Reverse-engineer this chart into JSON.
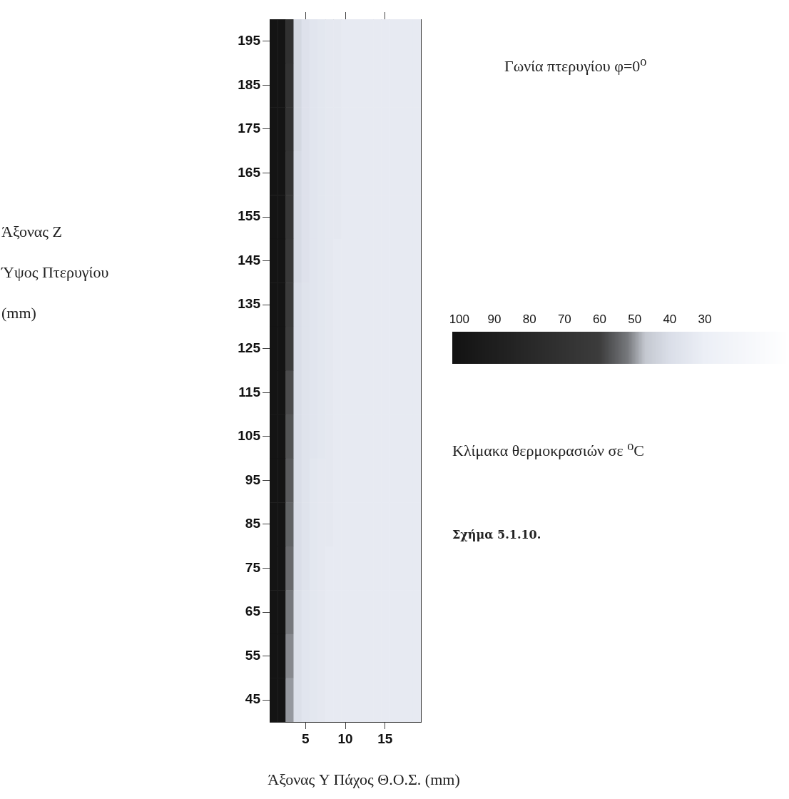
{
  "chart_data": {
    "type": "heatmap",
    "title": "Γωνία πτερυγίου φ=0$^{o}$",
    "xlabel": "Άξονας Y Πάχος Θ.Ο.Σ. (mm)",
    "ylabel": "Άξονας Z\nΎψος Πτερυγίου\n(mm)",
    "clabel": "Κλίμακα θερμοκρασιών σε $^{o}$C",
    "annotations": [
      "Σχήμα 5.1.10."
    ],
    "categories": [
      null,
      null,
      null,
      null,
      "5",
      null,
      null,
      null,
      null,
      "10",
      null,
      null,
      null,
      null,
      "15",
      null,
      null,
      null,
      null
    ],
    "y_categories": [
      "195",
      "185",
      "175",
      "165",
      "155",
      "145",
      "135",
      "125",
      "115",
      "105",
      "95",
      "85",
      "75",
      "65",
      "55",
      "45"
    ],
    "clim": [
      102,
      6
    ],
    "cticks": [
      100,
      90,
      80,
      70,
      60,
      50,
      40,
      30
    ],
    "cells": [
      [
        100,
        100,
        72,
        42,
        38,
        36,
        35,
        34,
        34,
        33,
        33,
        33,
        33,
        33,
        33,
        33,
        33,
        33,
        33
      ],
      [
        100,
        100,
        70,
        42,
        38,
        36,
        35,
        34,
        34,
        33,
        33,
        33,
        33,
        33,
        33,
        33,
        33,
        33,
        33
      ],
      [
        100,
        100,
        70,
        42,
        38,
        36,
        35,
        34,
        34,
        33,
        33,
        33,
        33,
        33,
        33,
        33,
        33,
        33,
        33
      ],
      [
        100,
        100,
        68,
        41,
        38,
        36,
        35,
        34,
        34,
        33,
        33,
        33,
        33,
        33,
        33,
        33,
        33,
        33,
        33
      ],
      [
        100,
        100,
        66,
        41,
        38,
        36,
        35,
        34,
        34,
        33,
        33,
        33,
        33,
        33,
        33,
        33,
        33,
        33,
        33
      ],
      [
        100,
        100,
        64,
        41,
        38,
        36,
        35,
        34,
        33,
        33,
        33,
        33,
        33,
        33,
        33,
        33,
        33,
        33,
        33
      ],
      [
        100,
        100,
        62,
        40,
        37,
        36,
        35,
        34,
        33,
        33,
        33,
        33,
        33,
        33,
        33,
        33,
        33,
        33,
        33
      ],
      [
        100,
        100,
        60,
        40,
        37,
        36,
        35,
        34,
        33,
        33,
        33,
        33,
        33,
        33,
        33,
        33,
        33,
        33,
        33
      ],
      [
        100,
        100,
        58,
        40,
        37,
        36,
        35,
        34,
        33,
        33,
        33,
        33,
        33,
        33,
        33,
        33,
        33,
        33,
        33
      ],
      [
        100,
        100,
        57,
        40,
        37,
        36,
        35,
        34,
        33,
        33,
        33,
        33,
        33,
        33,
        33,
        33,
        33,
        33,
        33
      ],
      [
        100,
        100,
        56,
        40,
        37,
        35,
        34,
        34,
        33,
        33,
        33,
        33,
        33,
        33,
        33,
        33,
        33,
        33,
        33
      ],
      [
        100,
        100,
        55,
        40,
        37,
        35,
        34,
        34,
        33,
        33,
        33,
        33,
        33,
        33,
        33,
        33,
        33,
        33,
        33
      ],
      [
        100,
        100,
        54,
        40,
        37,
        35,
        34,
        33,
        33,
        33,
        33,
        33,
        33,
        33,
        33,
        33,
        33,
        33,
        33
      ],
      [
        100,
        100,
        52,
        39,
        36,
        35,
        34,
        33,
        33,
        33,
        33,
        33,
        33,
        33,
        33,
        33,
        33,
        33,
        33
      ],
      [
        100,
        100,
        51,
        39,
        36,
        35,
        34,
        33,
        33,
        33,
        33,
        33,
        33,
        33,
        33,
        33,
        33,
        33,
        33
      ],
      [
        100,
        100,
        50,
        39,
        36,
        35,
        34,
        33,
        33,
        33,
        33,
        33,
        33,
        33,
        33,
        33,
        33,
        33,
        33
      ]
    ]
  }
}
